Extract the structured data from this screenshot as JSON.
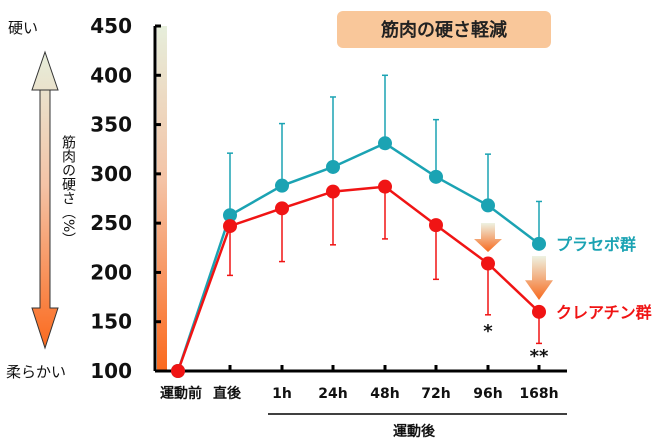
{
  "chart_data": {
    "type": "line",
    "title": "筋肉の硬さ軽減",
    "ylabel": "筋肉の硬さ（%）",
    "y_top_label": "硬い",
    "y_bottom_label": "柔らかい",
    "ylim": [
      100,
      450
    ],
    "yticks": [
      100,
      150,
      200,
      250,
      300,
      350,
      400,
      450
    ],
    "categories": [
      "運動前",
      "直後",
      "1h",
      "24h",
      "48h",
      "72h",
      "96h",
      "168h"
    ],
    "xgroup_label": "運動後",
    "grid": false,
    "legend": "right, inline at line ends",
    "series": [
      {
        "name": "プラセボ群",
        "color": "#1ba3b3",
        "values": [
          100,
          258,
          288,
          307,
          331,
          297,
          268,
          229
        ],
        "error_upper": [
          null,
          321,
          351,
          378,
          400,
          355,
          320,
          272
        ]
      },
      {
        "name": "クレアチン群",
        "color": "#f01414",
        "values": [
          100,
          247,
          265,
          282,
          287,
          248,
          209,
          160
        ],
        "error_lower": [
          null,
          197,
          211,
          228,
          234,
          193,
          157,
          128
        ]
      }
    ],
    "annotations": [
      {
        "category": "96h",
        "text": "*"
      },
      {
        "category": "168h",
        "text": "**"
      }
    ]
  }
}
